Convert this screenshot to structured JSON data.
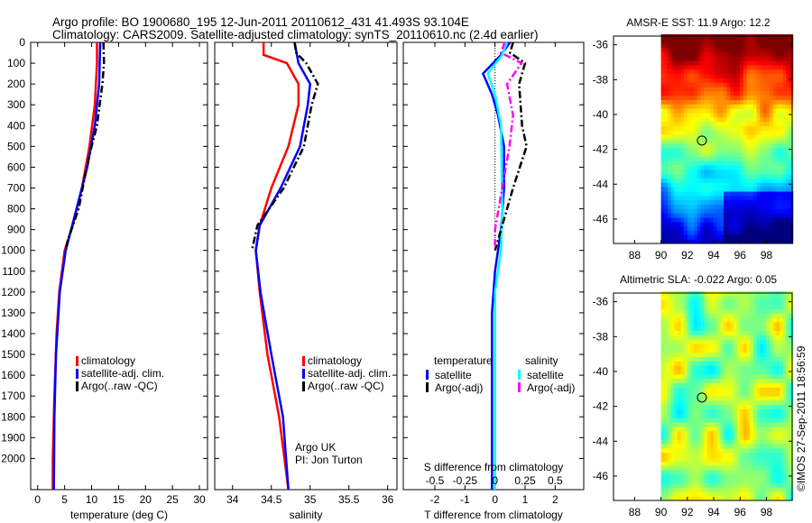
{
  "header": {
    "line1": "Argo profile: BO 1900680_195 12-Jun-2011 20110612_431 41.493S 93.104E",
    "line2": "Climatology: CARS2009. Satellite-adjusted climatology: synTS_20110610.nc (2.4d earlier)"
  },
  "credit": "©IMOS 27-Sep-2011 18:56:59",
  "colors": {
    "clim": "#ff0000",
    "sat": "#0000ff",
    "argo": "#000000",
    "ssat": "#00ffff",
    "sargo": "#ff00ff"
  },
  "chart_data": [
    {
      "type": "line",
      "id": "temp",
      "xlabel": "temperature (deg C)",
      "xlim": [
        -1.3,
        31.5
      ],
      "xticks": [
        0,
        5,
        10,
        15,
        20,
        25,
        30
      ],
      "ylim": [
        2150,
        0
      ],
      "yticks": [
        0,
        100,
        200,
        300,
        400,
        500,
        600,
        700,
        800,
        900,
        1000,
        1100,
        1200,
        1300,
        1400,
        1500,
        1600,
        1700,
        1800,
        1900,
        2000
      ],
      "legend": [
        "climatology",
        "satellite-adj. clim.",
        "Argo(..raw -QC)"
      ],
      "series": [
        {
          "name": "climatology",
          "color": "#ff0000",
          "dash": false,
          "points": [
            [
              11,
              0
            ],
            [
              11,
              100
            ],
            [
              10.6,
              300
            ],
            [
              9.6,
              500
            ],
            [
              8.2,
              700
            ],
            [
              6.5,
              880
            ],
            [
              5,
              1000
            ],
            [
              4,
              1200
            ],
            [
              3.5,
              1400
            ],
            [
              3.1,
              1700
            ],
            [
              2.8,
              2000
            ],
            [
              2.8,
              2150
            ]
          ]
        },
        {
          "name": "satellite-adj. clim.",
          "color": "#0000ff",
          "dash": false,
          "points": [
            [
              11.6,
              0
            ],
            [
              11.4,
              200
            ],
            [
              10.6,
              400
            ],
            [
              9.2,
              600
            ],
            [
              7.2,
              800
            ],
            [
              5.2,
              1000
            ],
            [
              4.1,
              1200
            ],
            [
              3.4,
              1500
            ],
            [
              3.1,
              1800
            ],
            [
              3,
              2150
            ]
          ]
        },
        {
          "name": "Argo(..raw -QC)",
          "color": "#000000",
          "dash": true,
          "points": [
            [
              12.2,
              0
            ],
            [
              12.3,
              100
            ],
            [
              12,
              200
            ],
            [
              11.5,
              300
            ],
            [
              11,
              400
            ],
            [
              10,
              500
            ],
            [
              9.1,
              600
            ],
            [
              7.6,
              800
            ],
            [
              5.6,
              950
            ],
            [
              5.2,
              1000
            ]
          ]
        }
      ]
    },
    {
      "type": "line",
      "id": "sal",
      "xlabel": "salinity",
      "xlim": [
        33.77,
        36.12
      ],
      "xticks": [
        34,
        34.5,
        35,
        35.5,
        36
      ],
      "ylim": [
        2150,
        0
      ],
      "legend": [
        "climatology",
        "satellite-adj. clim.",
        "Argo(..raw -QC)"
      ],
      "annotation": [
        "Argo UK",
        "PI: Jon Turton"
      ],
      "series": [
        {
          "name": "climatology",
          "color": "#ff0000",
          "dash": false,
          "points": [
            [
              34.4,
              0
            ],
            [
              34.4,
              60
            ],
            [
              34.7,
              100
            ],
            [
              34.85,
              200
            ],
            [
              34.85,
              300
            ],
            [
              34.72,
              500
            ],
            [
              34.5,
              700
            ],
            [
              34.35,
              880
            ],
            [
              34.3,
              1000
            ],
            [
              34.35,
              1200
            ],
            [
              34.45,
              1500
            ],
            [
              34.6,
              1800
            ],
            [
              34.72,
              2150
            ]
          ]
        },
        {
          "name": "satellite-adj. clim.",
          "color": "#0000ff",
          "dash": false,
          "points": [
            [
              34.8,
              0
            ],
            [
              34.85,
              100
            ],
            [
              35.0,
              200
            ],
            [
              34.97,
              300
            ],
            [
              34.87,
              500
            ],
            [
              34.62,
              700
            ],
            [
              34.35,
              880
            ],
            [
              34.3,
              1000
            ],
            [
              34.36,
              1200
            ],
            [
              34.5,
              1500
            ],
            [
              34.65,
              1800
            ],
            [
              34.72,
              2150
            ]
          ]
        },
        {
          "name": "Argo(..raw -QC)",
          "color": "#000000",
          "dash": true,
          "points": [
            [
              34.8,
              0
            ],
            [
              34.82,
              50
            ],
            [
              34.95,
              100
            ],
            [
              35.1,
              200
            ],
            [
              35.02,
              300
            ],
            [
              34.92,
              500
            ],
            [
              34.66,
              700
            ],
            [
              34.32,
              880
            ],
            [
              34.25,
              1000
            ]
          ]
        }
      ]
    },
    {
      "type": "line",
      "id": "diff",
      "xlabel": "T difference from climatology",
      "xlim": [
        -3.05,
        2.95
      ],
      "xticks": [
        -2,
        -1,
        0,
        1,
        2
      ],
      "x2label": "S difference from climatology",
      "x2ticks": [
        "-0.5",
        "-0.25",
        "0",
        "0.25",
        "0.5"
      ],
      "ylim": [
        2150,
        0
      ],
      "legend": {
        "temperature": "temperature",
        "salinity": "salinity",
        "items": [
          "satellite",
          "Argo(-adj)",
          "satellite",
          "Argo(-adj)"
        ]
      },
      "series": [
        {
          "name": "T satellite",
          "color": "#0000ff",
          "dash": false,
          "scale": 1,
          "points": [
            [
              0.5,
              0
            ],
            [
              0.2,
              60
            ],
            [
              -0.4,
              150
            ],
            [
              -0.1,
              250
            ],
            [
              0.1,
              350
            ],
            [
              0.3,
              500
            ],
            [
              0.3,
              700
            ],
            [
              0.2,
              900
            ],
            [
              0,
              1100
            ],
            [
              -0.1,
              1300
            ],
            [
              -0.1,
              2150
            ]
          ]
        },
        {
          "name": "S satellite",
          "color": "#00ffff",
          "dash": false,
          "scale": 4,
          "points": [
            [
              0.1,
              0
            ],
            [
              0.06,
              60
            ],
            [
              -0.06,
              150
            ],
            [
              0.0,
              250
            ],
            [
              0.05,
              400
            ],
            [
              0.06,
              800
            ],
            [
              0.05,
              1000
            ],
            [
              0.0,
              1200
            ],
            [
              0.0,
              2150
            ]
          ]
        },
        {
          "name": "T Argo(-adj)",
          "color": "#000000",
          "dash": true,
          "scale": 1,
          "points": [
            [
              0.6,
              0
            ],
            [
              0.5,
              50
            ],
            [
              1.0,
              100
            ],
            [
              0.8,
              200
            ],
            [
              0.9,
              400
            ],
            [
              1.05,
              500
            ],
            [
              0.6,
              700
            ],
            [
              0.4,
              800
            ],
            [
              0.1,
              950
            ],
            [
              0,
              1000
            ]
          ]
        },
        {
          "name": "S Argo(-adj)",
          "color": "#ff00ff",
          "dash": true,
          "scale": 4,
          "points": [
            [
              0.08,
              0
            ],
            [
              0.05,
              50
            ],
            [
              0.22,
              100
            ],
            [
              0.1,
              200
            ],
            [
              0.15,
              350
            ],
            [
              0.12,
              500
            ],
            [
              0.06,
              700
            ],
            [
              0,
              900
            ],
            [
              0,
              980
            ]
          ]
        }
      ]
    },
    {
      "type": "heatmap",
      "id": "sst",
      "title": "AMSR-E SST: 11.9 Argo: 12.2",
      "xlim": [
        86.4,
        99.95
      ],
      "ylim": [
        -47.4,
        -35.5
      ],
      "xticks": [
        88,
        90,
        92,
        94,
        96,
        98
      ],
      "yticks": [
        -36,
        -38,
        -40,
        -42,
        -44,
        -46
      ],
      "marker": [
        93.104,
        -41.493
      ],
      "value": 11.9,
      "argo": 12.2
    },
    {
      "type": "heatmap",
      "id": "sla",
      "title": "Altimetric SLA: -0.022 Argo: 0.05",
      "xlim": [
        86.4,
        99.95
      ],
      "ylim": [
        -47.4,
        -35.5
      ],
      "xticks": [
        88,
        90,
        92,
        94,
        96,
        98
      ],
      "yticks": [
        -36,
        -38,
        -40,
        -42,
        -44,
        -46
      ],
      "marker": [
        93.104,
        -41.493
      ],
      "value": -0.022,
      "argo": 0.05
    }
  ]
}
